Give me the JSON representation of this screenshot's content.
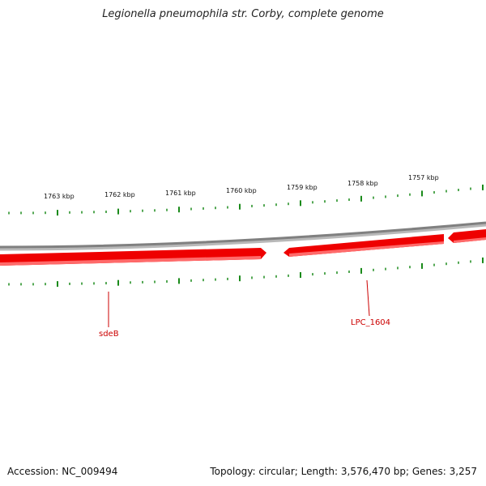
{
  "title": "Legionella pneumophila str. Corby, complete genome",
  "footer": {
    "accession": "Accession: NC_009494",
    "summary": "Topology: circular; Length: 3,576,470 bp; Genes: 3,257"
  },
  "map": {
    "ruler_unit": "kbp",
    "ruler_labels": [
      "1763 kbp",
      "1762 kbp",
      "1761 kbp",
      "1760 kbp",
      "1759 kbp",
      "1758 kbp",
      "1757 kbp"
    ],
    "gene_labels": [
      "sdeB",
      "LPC_1604"
    ],
    "colors": {
      "tick": "#1a8a1a",
      "gene": "#ee0000",
      "gene_highlight": "#ff6a6a",
      "backbone": "#8a8a8a",
      "gene_label": "#cc0000"
    }
  }
}
